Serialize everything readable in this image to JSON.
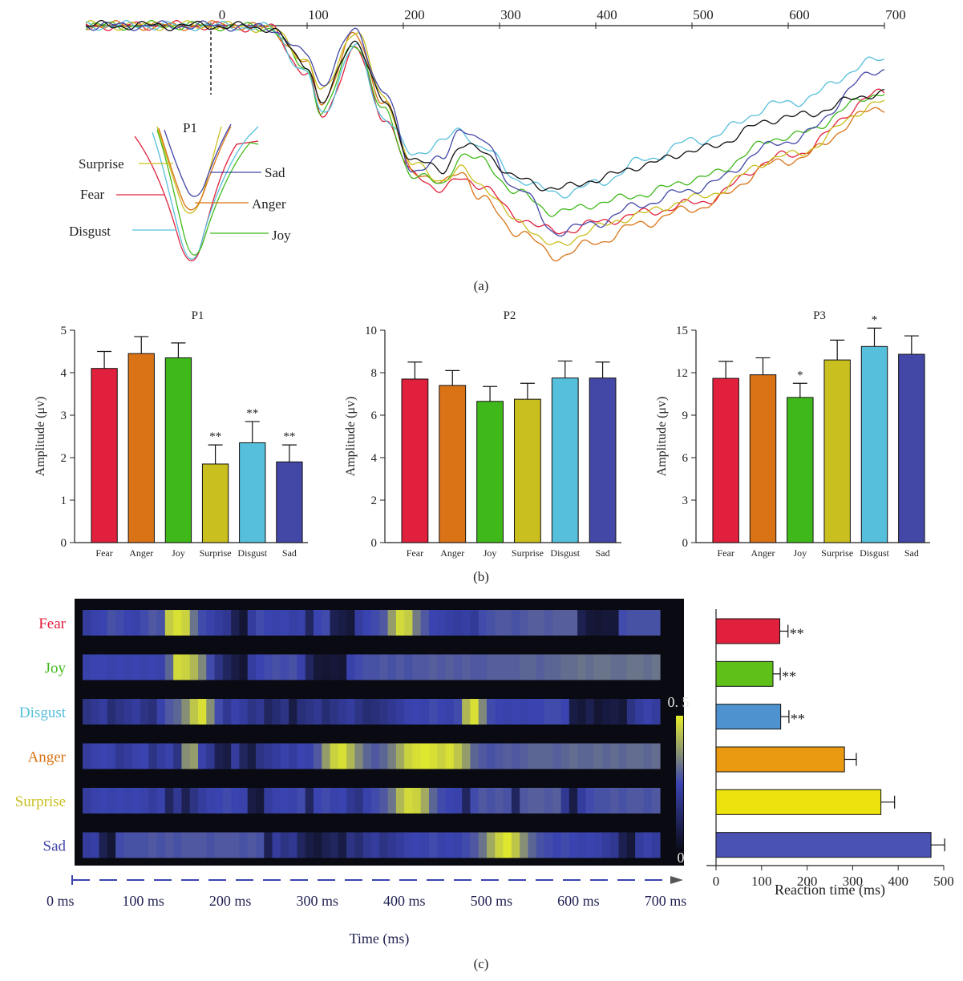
{
  "panel_labels": {
    "a": "(a)",
    "b": "(b)",
    "c": "(c)"
  },
  "colors": {
    "Fear": "#e0203c",
    "Anger": "#d97316",
    "Joy": "#3fb91a",
    "Surprise": "#c9bf1e",
    "Disgust": "#56bfdb",
    "Sad": "#4347a6",
    "Average": "#111111",
    "Joy_bar_c": "#5fc018",
    "Disgust_bar_c": "#4f92d0",
    "Anger_bar_c": "#ea9a10",
    "Surprise_bar_c": "#ece20e",
    "Sad_bar_c": "#4a52b4",
    "heat_low": "#0a0a14",
    "heat_mid": "#3a44b0",
    "heat_high": "#e6ee2a"
  },
  "chart_data": [
    {
      "id": "erp",
      "type": "line",
      "x_ticks": [
        "0",
        "100",
        "200",
        "300",
        "400",
        "500",
        "600",
        "700"
      ],
      "xlim": [
        -130,
        700
      ],
      "inset": {
        "title": "P1",
        "labels": [
          "Surprise",
          "Fear",
          "Disgust",
          "Sad",
          "Anger",
          "Joy"
        ]
      },
      "series": [
        {
          "key": "Fear",
          "x": [
            -130,
            -50,
            0,
            60,
            100,
            115,
            150,
            180,
            210,
            240,
            260,
            280,
            320,
            360,
            400,
            450,
            500,
            600,
            700
          ],
          "y": [
            0,
            0,
            0,
            -2,
            -50,
            -95,
            -25,
            -95,
            -155,
            -170,
            -160,
            -165,
            -200,
            -215,
            -205,
            -195,
            -185,
            -135,
            -70
          ]
        },
        {
          "key": "Anger",
          "x": [
            -130,
            -50,
            0,
            60,
            100,
            115,
            150,
            180,
            210,
            240,
            260,
            280,
            320,
            360,
            400,
            450,
            500,
            600,
            700
          ],
          "y": [
            0,
            0,
            0,
            -2,
            -40,
            -78,
            -10,
            -80,
            -150,
            -165,
            -150,
            -180,
            -215,
            -240,
            -225,
            -205,
            -190,
            -140,
            -85
          ]
        },
        {
          "key": "Joy",
          "x": [
            -130,
            -50,
            0,
            60,
            100,
            115,
            150,
            180,
            210,
            240,
            260,
            280,
            320,
            360,
            400,
            450,
            500,
            600,
            700
          ],
          "y": [
            0,
            0,
            0,
            -2,
            -45,
            -90,
            -18,
            -90,
            -155,
            -165,
            -135,
            -140,
            -175,
            -195,
            -185,
            -175,
            -160,
            -115,
            -70
          ]
        },
        {
          "key": "Surprise",
          "x": [
            -130,
            -50,
            0,
            60,
            100,
            115,
            150,
            180,
            210,
            240,
            260,
            280,
            320,
            360,
            400,
            450,
            500,
            600,
            700
          ],
          "y": [
            0,
            0,
            0,
            -2,
            -35,
            -70,
            -5,
            -75,
            -145,
            -160,
            -150,
            -165,
            -205,
            -230,
            -210,
            -195,
            -180,
            -135,
            -80
          ]
        },
        {
          "key": "Disgust",
          "x": [
            -130,
            -50,
            0,
            60,
            100,
            115,
            150,
            180,
            210,
            240,
            260,
            280,
            320,
            360,
            400,
            450,
            500,
            600,
            700
          ],
          "y": [
            0,
            0,
            0,
            -2,
            -50,
            -92,
            -22,
            -95,
            -135,
            -120,
            -110,
            -125,
            -160,
            -175,
            -165,
            -140,
            -120,
            -80,
            -35
          ]
        },
        {
          "key": "Sad",
          "x": [
            -130,
            -50,
            0,
            60,
            100,
            115,
            150,
            180,
            210,
            240,
            260,
            280,
            320,
            360,
            400,
            450,
            500,
            600,
            700
          ],
          "y": [
            0,
            0,
            0,
            -2,
            -30,
            -60,
            -5,
            -70,
            -150,
            -140,
            -105,
            -120,
            -170,
            -215,
            -205,
            -185,
            -170,
            -120,
            -45
          ]
        },
        {
          "key": "Average",
          "x": [
            -130,
            -50,
            0,
            60,
            100,
            115,
            150,
            180,
            210,
            240,
            260,
            280,
            320,
            360,
            400,
            450,
            500,
            600,
            700
          ],
          "y": [
            0,
            0,
            0,
            -2,
            -40,
            -80,
            -15,
            -80,
            -140,
            -150,
            -125,
            -130,
            -160,
            -170,
            -160,
            -145,
            -130,
            -95,
            -70
          ]
        }
      ]
    },
    {
      "id": "P1",
      "type": "bar",
      "title": "P1",
      "ylabel": "Amplitude (μv)",
      "categories": [
        "Fear",
        "Anger",
        "Joy",
        "Surprise",
        "Disgust",
        "Sad"
      ],
      "values": [
        4.1,
        4.45,
        4.35,
        1.85,
        2.35,
        1.9
      ],
      "errors": [
        0.4,
        0.4,
        0.35,
        0.45,
        0.5,
        0.4
      ],
      "annotations": [
        "",
        "",
        "",
        "**",
        "**",
        "**"
      ],
      "ylim": [
        0,
        5
      ],
      "yticks": [
        0,
        1,
        2,
        3,
        4,
        5
      ]
    },
    {
      "id": "P2",
      "type": "bar",
      "title": "P2",
      "ylabel": "Amplitude (μv)",
      "categories": [
        "Fear",
        "Anger",
        "Joy",
        "Surprise",
        "Disgust",
        "Sad"
      ],
      "values": [
        7.7,
        7.4,
        6.65,
        6.75,
        7.75,
        7.75
      ],
      "errors": [
        0.8,
        0.7,
        0.7,
        0.75,
        0.8,
        0.75
      ],
      "annotations": [
        "",
        "",
        "",
        "",
        "",
        ""
      ],
      "ylim": [
        0,
        10
      ],
      "yticks": [
        0,
        2,
        4,
        6,
        8,
        10
      ]
    },
    {
      "id": "P3",
      "type": "bar",
      "title": "P3",
      "ylabel": "Amplitude (μv)",
      "categories": [
        "Fear",
        "Anger",
        "Joy",
        "Surprise",
        "Disgust",
        "Sad"
      ],
      "values": [
        11.6,
        11.85,
        10.25,
        12.9,
        13.85,
        13.3
      ],
      "errors": [
        1.2,
        1.2,
        1.0,
        1.4,
        1.3,
        1.3
      ],
      "annotations": [
        "",
        "",
        "*",
        "",
        "*",
        ""
      ],
      "ylim": [
        0,
        15
      ],
      "yticks": [
        0,
        3,
        6,
        9,
        12,
        15
      ]
    },
    {
      "id": "heatmap",
      "type": "heatmap",
      "rows": [
        "Fear",
        "Joy",
        "Disgust",
        "Anger",
        "Surprise",
        "Sad"
      ],
      "x_ticks": [
        "0 ms",
        "100 ms",
        "200 ms",
        "300 ms",
        "400 ms",
        "500 ms",
        "600 ms",
        "700 ms"
      ],
      "xlabel": "Time (ms)",
      "colorbar_max": "0. 5",
      "colorbar_min": "0",
      "bins": 70,
      "xlim_ms": [
        0,
        700
      ],
      "rows_values": [
        [
          0.22,
          0.24,
          0.25,
          0.27,
          0.26,
          0.25,
          0.24,
          0.26,
          0.28,
          0.27,
          0.45,
          0.48,
          0.46,
          0.32,
          0.26,
          0.24,
          0.22,
          0.2,
          0.1,
          0.05,
          0.22,
          0.26,
          0.25,
          0.24,
          0.25,
          0.23,
          0.24,
          0.12,
          0.25,
          0.26,
          0.1,
          0.08,
          0.06,
          0.22,
          0.25,
          0.26,
          0.28,
          0.38,
          0.47,
          0.45,
          0.33,
          0.28,
          0.25,
          0.24,
          0.23,
          0.22,
          0.23,
          0.21,
          0.26,
          0.27,
          0.28,
          0.28,
          0.27,
          0.28,
          0.29,
          0.29,
          0.28,
          0.29,
          0.29,
          0.29,
          0.1,
          0.06,
          0.05,
          0.06,
          0.06,
          0.26,
          0.27,
          0.27,
          0.27,
          0.27
        ],
        [
          0.24,
          0.25,
          0.25,
          0.24,
          0.25,
          0.24,
          0.25,
          0.24,
          0.25,
          0.24,
          0.3,
          0.47,
          0.46,
          0.42,
          0.35,
          0.26,
          0.18,
          0.12,
          0.08,
          0.05,
          0.22,
          0.25,
          0.26,
          0.27,
          0.26,
          0.27,
          0.24,
          0.12,
          0.06,
          0.05,
          0.06,
          0.05,
          0.24,
          0.26,
          0.27,
          0.27,
          0.28,
          0.27,
          0.28,
          0.27,
          0.28,
          0.28,
          0.29,
          0.28,
          0.29,
          0.28,
          0.29,
          0.28,
          0.28,
          0.29,
          0.29,
          0.29,
          0.29,
          0.3,
          0.3,
          0.29,
          0.3,
          0.3,
          0.31,
          0.31,
          0.32,
          0.31,
          0.32,
          0.32,
          0.31,
          0.31,
          0.32,
          0.32,
          0.31,
          0.32
        ],
        [
          0.18,
          0.2,
          0.22,
          0.15,
          0.18,
          0.2,
          0.22,
          0.18,
          0.16,
          0.24,
          0.28,
          0.3,
          0.36,
          0.44,
          0.48,
          0.36,
          0.26,
          0.2,
          0.24,
          0.22,
          0.18,
          0.2,
          0.12,
          0.15,
          0.18,
          0.08,
          0.16,
          0.18,
          0.2,
          0.15,
          0.18,
          0.2,
          0.22,
          0.18,
          0.15,
          0.16,
          0.18,
          0.2,
          0.22,
          0.24,
          0.25,
          0.24,
          0.26,
          0.25,
          0.24,
          0.26,
          0.42,
          0.48,
          0.35,
          0.26,
          0.25,
          0.24,
          0.25,
          0.24,
          0.25,
          0.25,
          0.26,
          0.26,
          0.25,
          0.08,
          0.06,
          0.1,
          0.05,
          0.07,
          0.08,
          0.06,
          0.18,
          0.22,
          0.24,
          0.22
        ],
        [
          0.22,
          0.24,
          0.25,
          0.24,
          0.2,
          0.22,
          0.24,
          0.25,
          0.18,
          0.22,
          0.24,
          0.18,
          0.36,
          0.38,
          0.24,
          0.2,
          0.1,
          0.08,
          0.22,
          0.12,
          0.08,
          0.18,
          0.2,
          0.22,
          0.24,
          0.22,
          0.25,
          0.24,
          0.28,
          0.38,
          0.46,
          0.48,
          0.42,
          0.35,
          0.3,
          0.28,
          0.3,
          0.34,
          0.4,
          0.46,
          0.48,
          0.49,
          0.48,
          0.46,
          0.48,
          0.44,
          0.38,
          0.3,
          0.28,
          0.27,
          0.28,
          0.29,
          0.28,
          0.29,
          0.3,
          0.3,
          0.3,
          0.29,
          0.3,
          0.31,
          0.3,
          0.3,
          0.31,
          0.3,
          0.31,
          0.3,
          0.31,
          0.31,
          0.3,
          0.31
        ],
        [
          0.22,
          0.24,
          0.25,
          0.24,
          0.25,
          0.24,
          0.25,
          0.24,
          0.22,
          0.24,
          0.12,
          0.2,
          0.1,
          0.18,
          0.22,
          0.24,
          0.25,
          0.26,
          0.25,
          0.24,
          0.08,
          0.06,
          0.22,
          0.24,
          0.25,
          0.24,
          0.26,
          0.12,
          0.25,
          0.26,
          0.24,
          0.25,
          0.2,
          0.18,
          0.24,
          0.26,
          0.28,
          0.32,
          0.42,
          0.47,
          0.46,
          0.4,
          0.3,
          0.26,
          0.25,
          0.24,
          0.12,
          0.26,
          0.28,
          0.27,
          0.28,
          0.27,
          0.12,
          0.28,
          0.29,
          0.29,
          0.28,
          0.29,
          0.2,
          0.08,
          0.22,
          0.26,
          0.27,
          0.27,
          0.28,
          0.27,
          0.28,
          0.28,
          0.27,
          0.28
        ],
        [
          0.22,
          0.23,
          0.1,
          0.05,
          0.26,
          0.27,
          0.27,
          0.27,
          0.28,
          0.27,
          0.28,
          0.27,
          0.28,
          0.28,
          0.28,
          0.27,
          0.28,
          0.28,
          0.28,
          0.27,
          0.28,
          0.27,
          0.1,
          0.22,
          0.18,
          0.2,
          0.12,
          0.08,
          0.06,
          0.1,
          0.12,
          0.08,
          0.18,
          0.15,
          0.2,
          0.22,
          0.18,
          0.2,
          0.22,
          0.24,
          0.25,
          0.24,
          0.26,
          0.24,
          0.25,
          0.24,
          0.26,
          0.28,
          0.32,
          0.4,
          0.46,
          0.49,
          0.44,
          0.36,
          0.3,
          0.27,
          0.26,
          0.25,
          0.26,
          0.25,
          0.24,
          0.25,
          0.24,
          0.22,
          0.2,
          0.1,
          0.06,
          0.22,
          0.24,
          0.22
        ]
      ]
    },
    {
      "id": "reaction",
      "type": "bar",
      "orientation": "horizontal",
      "xlabel": "Reaction time (ms)",
      "categories": [
        "Fear",
        "Joy",
        "Disgust",
        "Anger",
        "Surprise",
        "Sad"
      ],
      "values": [
        140,
        125,
        142,
        282,
        362,
        472
      ],
      "errors": [
        18,
        16,
        18,
        26,
        30,
        30
      ],
      "annotations": [
        "**",
        "**",
        "**",
        "",
        "",
        ""
      ],
      "xlim": [
        0,
        500
      ],
      "xticks": [
        "0",
        "100",
        "200",
        "300",
        "400",
        "500"
      ]
    }
  ]
}
